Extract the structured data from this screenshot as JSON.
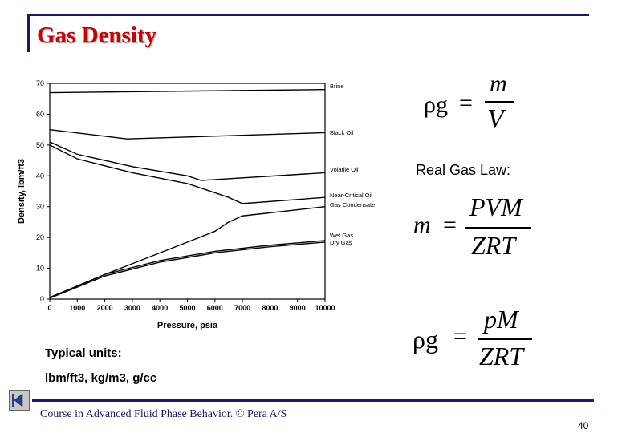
{
  "slide": {
    "title": "Gas Density",
    "real_gas_law_label": "Real Gas Law:",
    "units_title": "Typical units:",
    "units_value": "lbm/ft3, kg/m3, g/cc",
    "footer": "Course in Advanced Fluid Phase Behavior. © Pera A/S",
    "page_number": "40"
  },
  "equations": {
    "eq1": {
      "lhs": "ρg",
      "num": "m",
      "den": "V"
    },
    "eq2": {
      "lhs": "m",
      "num": "PVM",
      "den": "ZRT"
    },
    "eq3": {
      "lhs": "ρg",
      "num": "pM",
      "den": "ZRT"
    }
  },
  "chart_data": {
    "type": "line",
    "xlabel": "Pressure, psia",
    "ylabel": "Density, lbm/ft3",
    "xlim": [
      0,
      10000
    ],
    "ylim": [
      0,
      70
    ],
    "xticks": [
      0,
      1000,
      2000,
      3000,
      4000,
      5000,
      6000,
      7000,
      8000,
      9000,
      10000
    ],
    "yticks": [
      0,
      10,
      20,
      30,
      40,
      50,
      60,
      70
    ],
    "series": [
      {
        "name": "Brine",
        "x": [
          0,
          10000
        ],
        "y": [
          67,
          68
        ]
      },
      {
        "name": "Black Oil",
        "x": [
          0,
          2800,
          10000
        ],
        "y": [
          55,
          52,
          54
        ]
      },
      {
        "name": "Volatile Oil",
        "x": [
          0,
          1000,
          3000,
          5000,
          5500,
          10000
        ],
        "y": [
          51,
          47,
          43,
          40,
          38.5,
          41
        ]
      },
      {
        "name": "Near-Critical Oil",
        "x": [
          0,
          1000,
          3000,
          5000,
          6500,
          7000,
          10000
        ],
        "y": [
          50,
          45.5,
          41,
          37.5,
          33,
          31,
          33
        ]
      },
      {
        "name": "Gas Condensate",
        "x": [
          0,
          2000,
          4000,
          6000,
          6500,
          7000,
          10000
        ],
        "y": [
          0.5,
          8,
          15,
          22,
          25,
          27,
          30
        ]
      },
      {
        "name": "Wet Gas",
        "x": [
          0,
          2000,
          4000,
          6000,
          8000,
          10000
        ],
        "y": [
          0.5,
          8,
          12.5,
          15.5,
          17.5,
          19
        ]
      },
      {
        "name": "Dry Gas",
        "x": [
          0,
          2000,
          4000,
          6000,
          8000,
          10000
        ],
        "y": [
          0.3,
          7.5,
          12,
          15,
          17,
          18.5
        ]
      }
    ]
  }
}
